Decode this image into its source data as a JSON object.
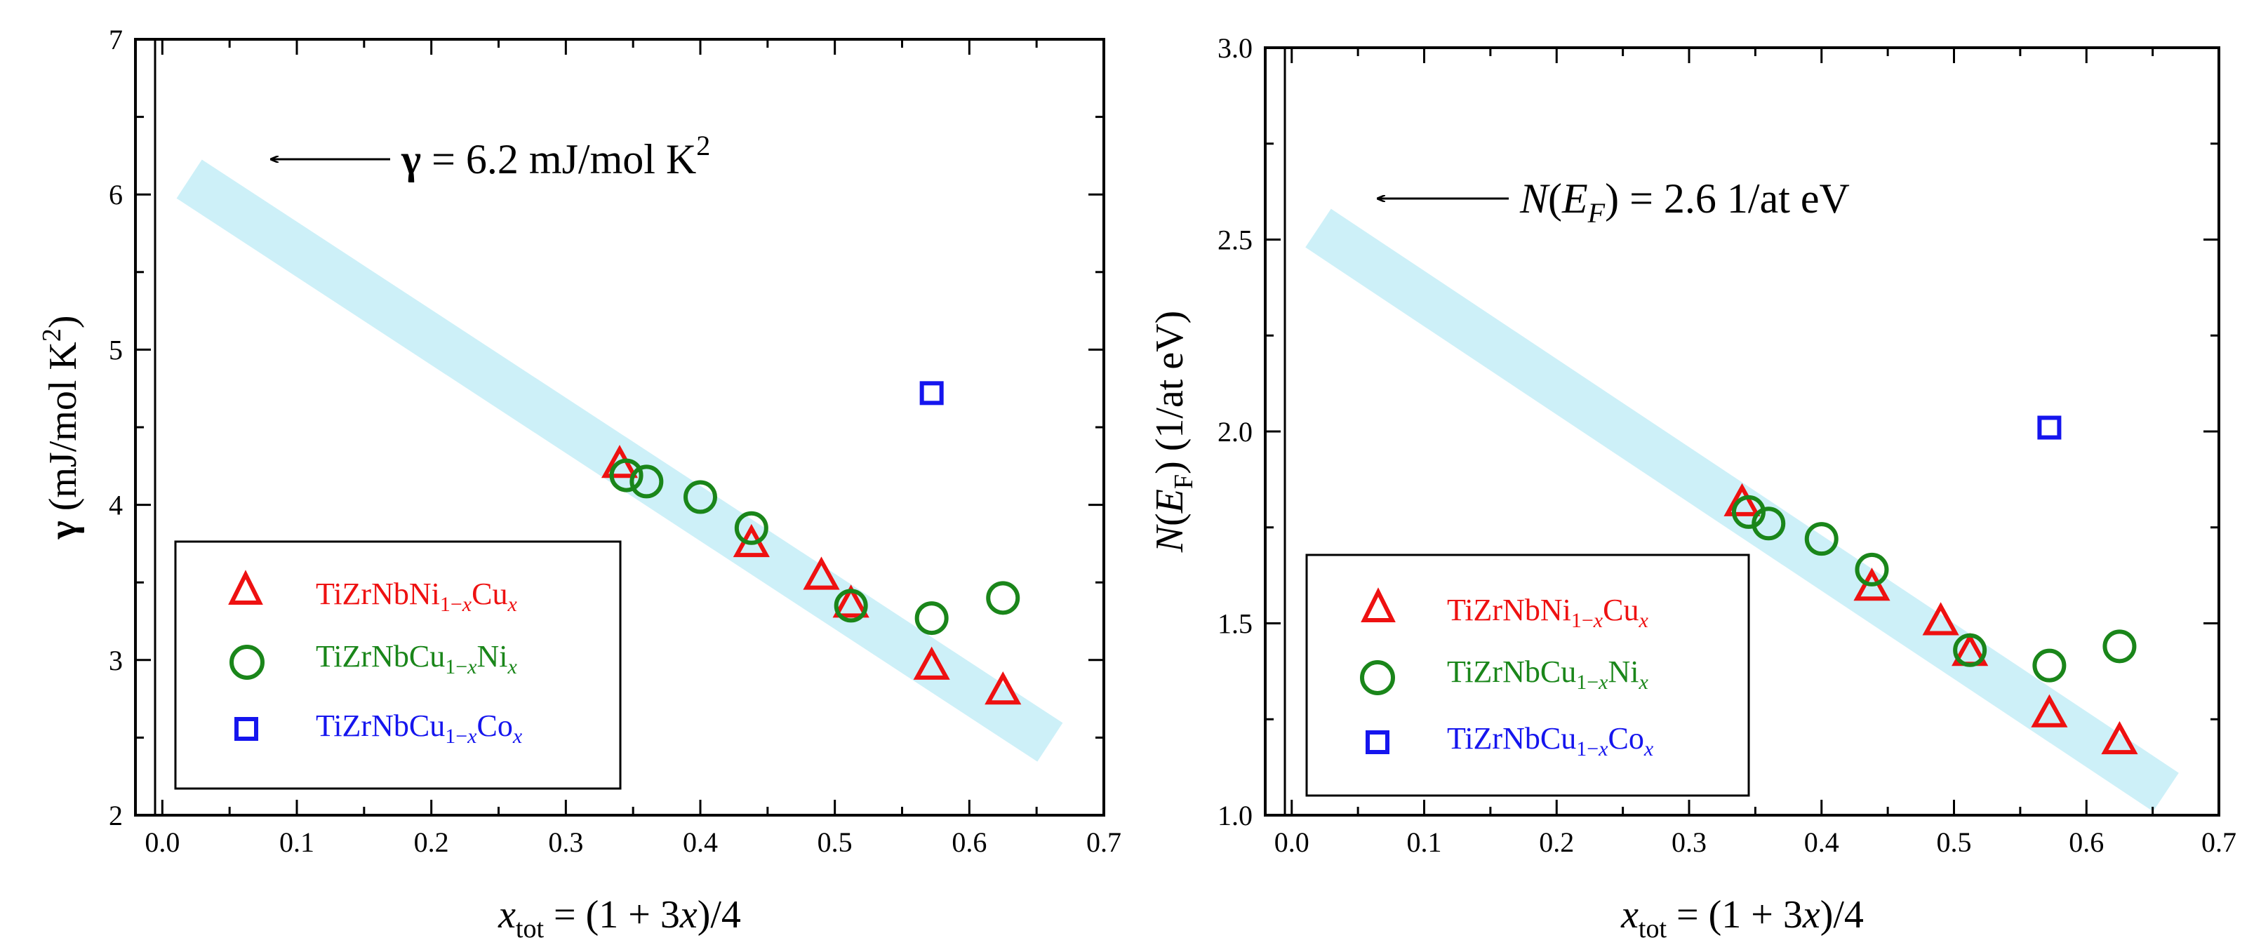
{
  "chart_data": [
    {
      "type": "scatter",
      "title": "",
      "xlabel": "x_tot = (1 + 3x)/4",
      "ylabel": "γ (mJ/mol K²)",
      "xlim": [
        -0.02,
        0.7
      ],
      "ylim": [
        2,
        7
      ],
      "xticks": [
        0.0,
        0.1,
        0.2,
        0.3,
        0.4,
        0.5,
        0.6,
        0.7
      ],
      "yticks": [
        2,
        3,
        4,
        5,
        6,
        7
      ],
      "xtick_labels": [
        "0.0",
        "0.1",
        "0.2",
        "0.3",
        "0.4",
        "0.5",
        "0.6",
        "0.7"
      ],
      "ytick_labels": [
        "2",
        "3",
        "4",
        "5",
        "6",
        "7"
      ],
      "colors": {
        "red": "#ee1111",
        "green": "#1a861a",
        "blue": "#1515ee",
        "band": "#cdf0f8"
      },
      "series": [
        {
          "name": "TiZrNbNi1-xCux",
          "marker": "triangle",
          "color": "#ee1111",
          "points": [
            [
              0.34,
              4.25
            ],
            [
              0.438,
              3.74
            ],
            [
              0.49,
              3.53
            ],
            [
              0.512,
              3.35
            ],
            [
              0.572,
              2.95
            ],
            [
              0.625,
              2.79
            ]
          ]
        },
        {
          "name": "TiZrNbCu1-xNix",
          "marker": "circle",
          "color": "#1a861a",
          "points": [
            [
              0.345,
              4.19
            ],
            [
              0.36,
              4.15
            ],
            [
              0.4,
              4.05
            ],
            [
              0.438,
              3.85
            ],
            [
              0.512,
              3.35
            ],
            [
              0.572,
              3.27
            ],
            [
              0.625,
              3.4
            ]
          ]
        },
        {
          "name": "TiZrNbCu1-xCox",
          "marker": "square",
          "color": "#1515ee",
          "points": [
            [
              0.572,
              4.72
            ]
          ]
        }
      ],
      "band": {
        "start": [
          0.02,
          6.1
        ],
        "end": [
          0.66,
          2.47
        ]
      },
      "annotation": {
        "text": "γ = 6.2 mJ/mol K²",
        "arrow_to": [
          0.08,
          6.22
        ],
        "arrow_from": [
          0.17,
          6.22
        ]
      },
      "legend": {
        "position": "bottom-left",
        "entries": [
          {
            "marker": "triangle",
            "color": "#ee1111",
            "label": "TiZrNbNi1−xCux"
          },
          {
            "marker": "circle",
            "color": "#1a861a",
            "label": "TiZrNbCu1−xNix"
          },
          {
            "marker": "square",
            "color": "#1515ee",
            "label": "TiZrNbCu1−xCox"
          }
        ]
      }
    },
    {
      "type": "scatter",
      "title": "",
      "xlabel": "x_tot = (1 + 3x)/4",
      "ylabel": "N(E_F) (1/at eV)",
      "xlim": [
        -0.02,
        0.7
      ],
      "ylim": [
        1.0,
        3.0
      ],
      "xticks": [
        0.0,
        0.1,
        0.2,
        0.3,
        0.4,
        0.5,
        0.6,
        0.7
      ],
      "yticks": [
        1.0,
        1.5,
        2.0,
        2.5,
        3.0
      ],
      "xtick_labels": [
        "0.0",
        "0.1",
        "0.2",
        "0.3",
        "0.4",
        "0.5",
        "0.6",
        "0.7"
      ],
      "ytick_labels": [
        "1.0",
        "1.5",
        "2.0",
        "2.5",
        "3.0"
      ],
      "colors": {
        "red": "#ee1111",
        "green": "#1a861a",
        "blue": "#1515ee",
        "band": "#cdf0f8"
      },
      "series": [
        {
          "name": "TiZrNbNi1-xCux",
          "marker": "triangle",
          "color": "#ee1111",
          "points": [
            [
              0.34,
              1.81
            ],
            [
              0.438,
              1.59
            ],
            [
              0.49,
              1.5
            ],
            [
              0.512,
              1.42
            ],
            [
              0.572,
              1.26
            ],
            [
              0.625,
              1.19
            ]
          ]
        },
        {
          "name": "TiZrNbCu1-xNix",
          "marker": "circle",
          "color": "#1a861a",
          "points": [
            [
              0.345,
              1.79
            ],
            [
              0.36,
              1.76
            ],
            [
              0.4,
              1.72
            ],
            [
              0.438,
              1.64
            ],
            [
              0.512,
              1.43
            ],
            [
              0.572,
              1.39
            ],
            [
              0.625,
              1.44
            ]
          ]
        },
        {
          "name": "TiZrNbCu1-xCox",
          "marker": "square",
          "color": "#1515ee",
          "points": [
            [
              0.572,
              2.01
            ]
          ]
        }
      ],
      "band": {
        "start": [
          0.02,
          2.53
        ],
        "end": [
          0.66,
          1.06
        ]
      },
      "annotation": {
        "text": "N(E_F) = 2.6 1/at eV",
        "arrow_to": [
          0.07,
          2.6
        ],
        "arrow_from": [
          0.165,
          2.6
        ]
      },
      "legend": {
        "position": "bottom-left",
        "entries": [
          {
            "marker": "triangle",
            "color": "#ee1111",
            "label": "TiZrNbNi1−xCux"
          },
          {
            "marker": "circle",
            "color": "#1a861a",
            "label": "TiZrNbCu1−xNix"
          },
          {
            "marker": "square",
            "color": "#1515ee",
            "label": "TiZrNbCu1−xCox"
          }
        ]
      }
    }
  ]
}
